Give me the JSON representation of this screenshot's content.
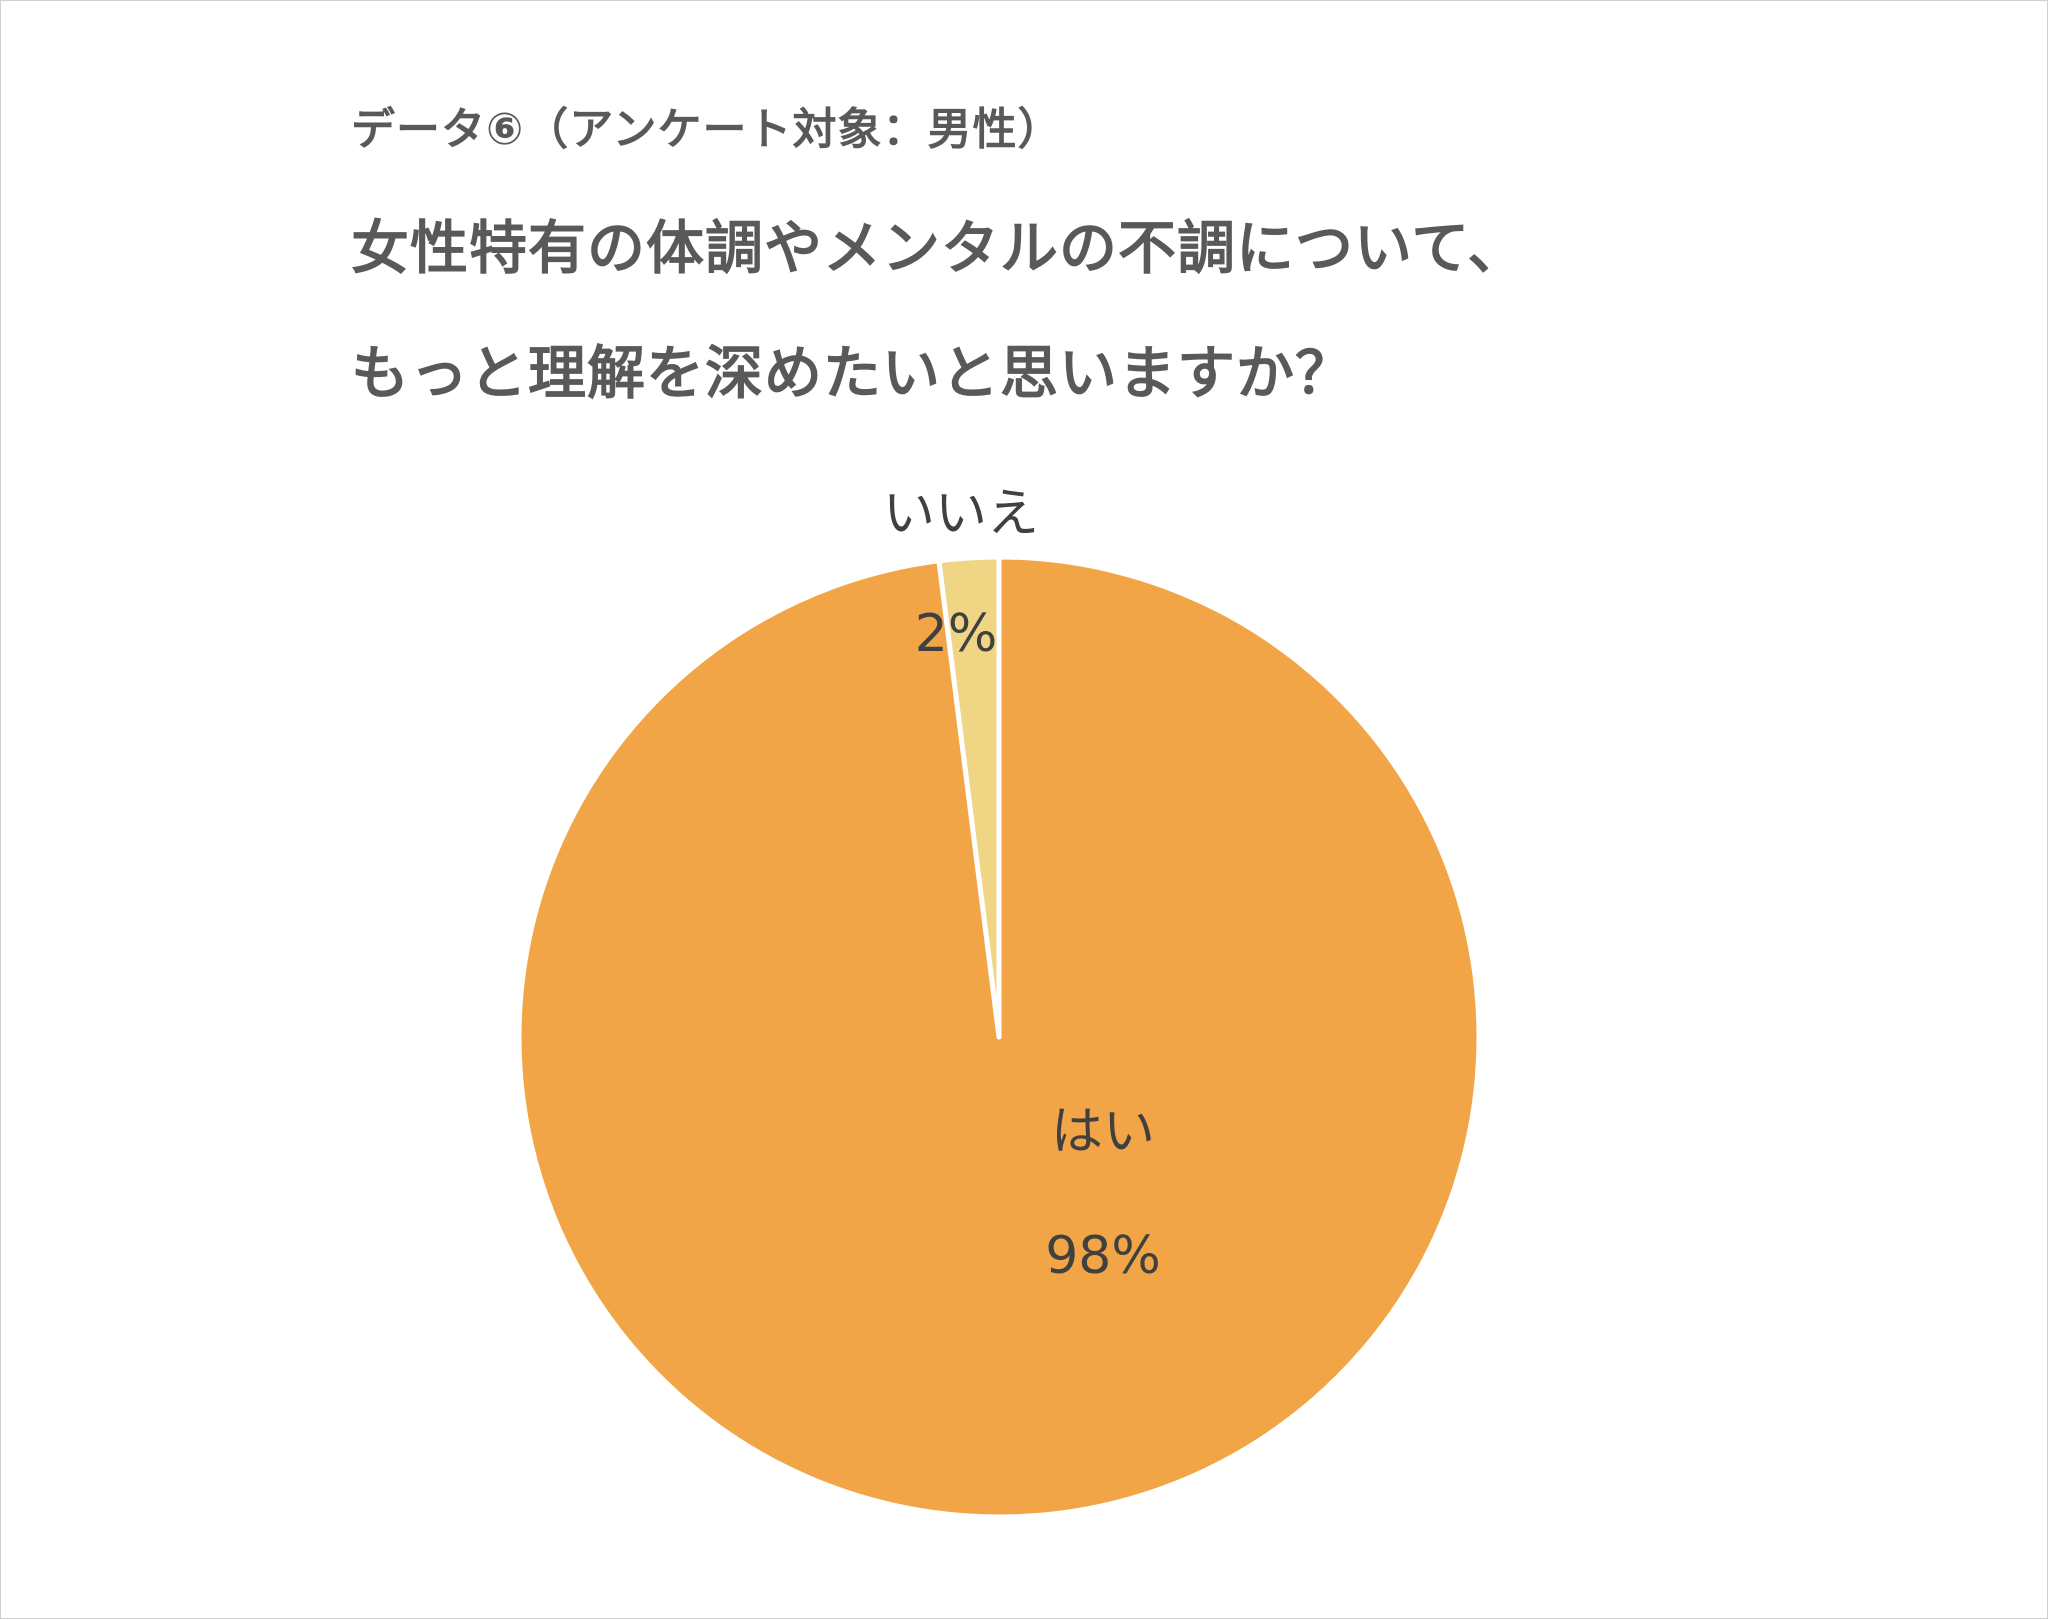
{
  "header": {
    "subtitle": "データ⑥（アンケート対象：男性）",
    "title_line1": "女性特有の体調やメンタルの不調について、",
    "title_line2": "もっと理解を深めたいと思いますか？"
  },
  "chart_data": {
    "type": "pie",
    "title": "女性特有の体調やメンタルの不調について、もっと理解を深めたいと思いますか？",
    "subtitle": "データ⑥（アンケート対象：男性）",
    "slices": [
      {
        "label": "はい",
        "value": 98,
        "display": "98%",
        "color": "#F2A546"
      },
      {
        "label": "いいえ",
        "value": 2,
        "display": "2%",
        "color": "#F0D584"
      }
    ],
    "start_angle_deg": 0,
    "direction": "clockwise",
    "legend": "none",
    "edge_color": "#ffffff"
  }
}
